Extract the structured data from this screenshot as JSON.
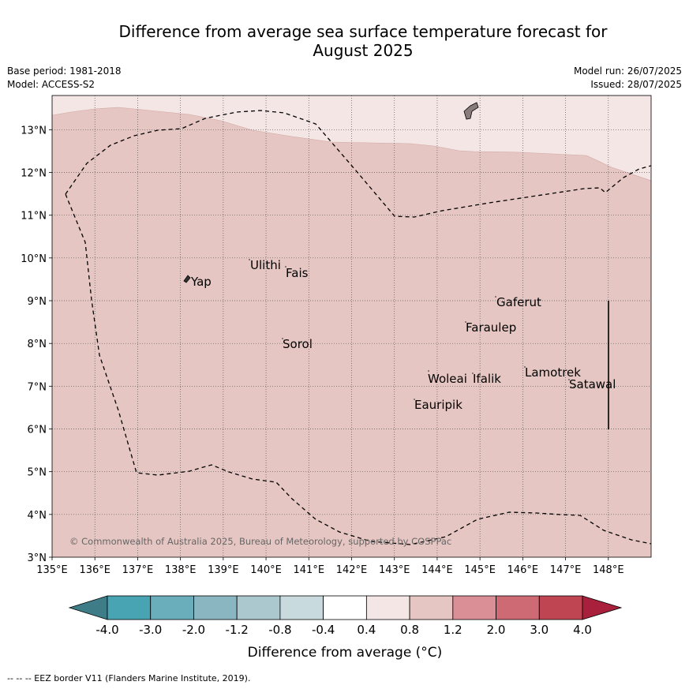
{
  "title_line1": "Difference from average sea surface temperature forecast for",
  "title_line2": "August 2025",
  "base_period": "Base period: 1981-2018",
  "model": "Model: ACCESS-S2",
  "model_run": "Model run: 26/07/2025",
  "issued": "Issued: 28/07/2025",
  "map": {
    "lon_ticks": [
      "135°E",
      "136°E",
      "137°E",
      "138°E",
      "139°E",
      "140°E",
      "141°E",
      "142°E",
      "143°E",
      "144°E",
      "145°E",
      "146°E",
      "147°E",
      "148°E"
    ],
    "lat_ticks": [
      "3°N",
      "4°N",
      "5°N",
      "6°N",
      "7°N",
      "8°N",
      "9°N",
      "10°N",
      "11°N",
      "12°N",
      "13°N"
    ],
    "lon_range": [
      135,
      149
    ],
    "lat_range": [
      3,
      13.8
    ],
    "fill_colors": {
      "anomaly_0_8_to_1_2": "#e6c6c2",
      "anomaly_0_4_to_0_8": "#f4e6e5"
    },
    "places": [
      {
        "name": "Yap"
      },
      {
        "name": "Ulithi"
      },
      {
        "name": "Fais"
      },
      {
        "name": "Sorol"
      },
      {
        "name": "Gaferut"
      },
      {
        "name": "Faraulep"
      },
      {
        "name": "Lamotrek"
      },
      {
        "name": "Satawal"
      },
      {
        "name": "Woleai"
      },
      {
        "name": "Ifalik"
      },
      {
        "name": "Eauripik"
      }
    ],
    "copyright": "© Commonwealth of Australia 2025, Bureau of Meteorology, supported by COSPPac"
  },
  "colorbar": {
    "labels": [
      "-4.0",
      "-3.0",
      "-2.0",
      "-1.2",
      "-0.8",
      "-0.4",
      "0.4",
      "0.8",
      "1.2",
      "2.0",
      "3.0",
      "4.0"
    ],
    "colors": [
      "#3e7c87",
      "#48a3b3",
      "#6aadbb",
      "#8ab6c2",
      "#aac8ce",
      "#c8dadd",
      "#ffffff",
      "#f4e6e5",
      "#e6c6c2",
      "#d98f95",
      "#cd6a74",
      "#c04553",
      "#a8203b"
    ],
    "label": "Difference from average (°C)"
  },
  "footnote": "-- -- -- EEZ border V11 (Flanders Marine Institute, 2019)."
}
